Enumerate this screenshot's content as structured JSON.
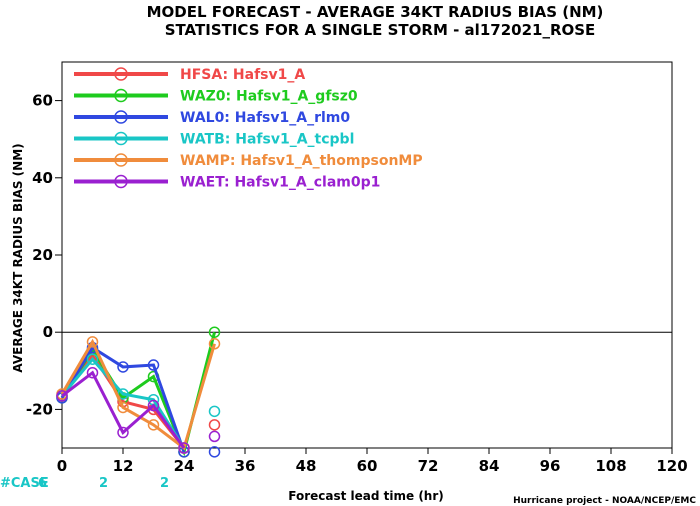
{
  "title": {
    "line1": "MODEL FORECAST - AVERAGE 34KT RADIUS BIAS (NM)",
    "line2": "STATISTICS FOR A SINGLE STORM - al172021_ROSE"
  },
  "credit": "Hurricane project - NOAA/NCEP/EMC",
  "case_label": "#CASE",
  "cases": [
    {
      "x": 0,
      "label": "6"
    },
    {
      "x": 12,
      "label": "2"
    },
    {
      "x": 24,
      "label": "2"
    }
  ],
  "chart_data": {
    "type": "line",
    "title": "MODEL FORECAST - AVERAGE 34KT RADIUS BIAS (NM)",
    "subtitle": "STATISTICS FOR A SINGLE STORM - al172021_ROSE",
    "xlabel": "Forecast lead time (hr)",
    "ylabel": "AVERAGE 34KT RADIUS BIAS (NM)",
    "xlim": [
      0,
      120
    ],
    "ylim": [
      -30,
      70
    ],
    "xticks": [
      0,
      12,
      24,
      36,
      48,
      60,
      72,
      84,
      96,
      108,
      120
    ],
    "yticks": [
      -20,
      0,
      20,
      40,
      60
    ],
    "zero_line": true,
    "grid": false,
    "legend_position": "top-left",
    "series": [
      {
        "name": "HFSA: Hafsv1_A",
        "color": "#f04848",
        "x": [
          0,
          6,
          12,
          18,
          24
        ],
        "y": [
          -16.5,
          -6,
          -18,
          -20,
          -30
        ],
        "extra_points": [
          {
            "x": 30,
            "y": -24
          }
        ]
      },
      {
        "name": "WAZ0: Hafsv1_A_gfsz0",
        "color": "#1ecb1e",
        "x": [
          0,
          6,
          12,
          18,
          24,
          30
        ],
        "y": [
          -17,
          -4.5,
          -17,
          -11.5,
          -31,
          0
        ]
      },
      {
        "name": "WAL0: Hafsv1_A_rlm0",
        "color": "#2f48e0",
        "x": [
          0,
          6,
          12,
          18,
          24
        ],
        "y": [
          -17,
          -4,
          -9,
          -8.5,
          -31
        ],
        "extra_points": [
          {
            "x": 30,
            "y": -31
          }
        ]
      },
      {
        "name": "WATB: Hafsv1_A_tcpbl",
        "color": "#19c6c6",
        "x": [
          0,
          6,
          12,
          18,
          24
        ],
        "y": [
          -16.5,
          -7,
          -16,
          -17.5,
          -30
        ],
        "extra_points": [
          {
            "x": 30,
            "y": -20.5
          }
        ]
      },
      {
        "name": "WAMP: Hafsv1_A_thompsonMP",
        "color": "#f08c3c",
        "x": [
          0,
          6,
          12,
          18,
          24,
          30
        ],
        "y": [
          -16,
          -2.5,
          -19.5,
          -24,
          -30,
          -3
        ]
      },
      {
        "name": "WAET: Hafsv1_A_clam0p1",
        "color": "#9a20d0",
        "x": [
          0,
          6,
          12,
          18,
          24
        ],
        "y": [
          -16.5,
          -10.5,
          -26,
          -19,
          -30
        ],
        "extra_points": [
          {
            "x": 30,
            "y": -27
          }
        ]
      }
    ]
  }
}
